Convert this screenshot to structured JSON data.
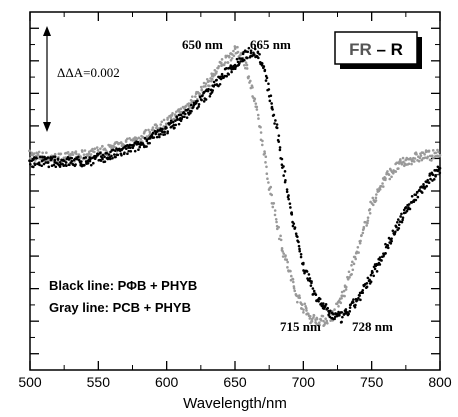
{
  "chart_data": {
    "type": "scatter",
    "xlabel": "Wavelength/nm",
    "ylabel": "",
    "xlim": [
      500,
      800
    ],
    "ylim": [
      -0.0065,
      0.0045
    ],
    "x_ticks": [
      "500",
      "550",
      "600",
      "650",
      "700",
      "750",
      "800"
    ],
    "scale_bar": {
      "label": "ΔΔA=0.002",
      "value": 0.002
    },
    "box_label": {
      "left": "FR",
      "dash": " – ",
      "right": "R"
    },
    "legend": [
      "Black line:  PΦB + PHYB",
      "Gray line:  PCB + PHYB"
    ],
    "peak_labels": [
      "650 nm",
      "665 nm",
      "715 nm",
      "728 nm"
    ],
    "series": [
      {
        "color": "#000000",
        "x": [
          500,
          520,
          540,
          560,
          580,
          600,
          615,
          630,
          645,
          655,
          662,
          667,
          672,
          680,
          690,
          700,
          710,
          720,
          728,
          735,
          745,
          755,
          765,
          775,
          785,
          795,
          800
        ],
        "y": [
          -0.0001,
          -0.0001,
          -0.0001,
          0.0001,
          0.0004,
          0.0009,
          0.0014,
          0.002,
          0.0027,
          0.0031,
          0.0033,
          0.0032,
          0.0026,
          0.001,
          -0.0014,
          -0.0033,
          -0.0043,
          -0.0048,
          -0.0049,
          -0.0046,
          -0.004,
          -0.0032,
          -0.0024,
          -0.0016,
          -0.001,
          -0.0005,
          -0.0003
        ]
      },
      {
        "color": "#999999",
        "x": [
          500,
          520,
          540,
          560,
          580,
          600,
          615,
          630,
          640,
          650,
          655,
          660,
          668,
          675,
          685,
          695,
          705,
          715,
          722,
          730,
          740,
          750,
          760,
          770,
          780,
          790,
          800
        ],
        "y": [
          0.0001,
          0.0,
          0.0001,
          0.0003,
          0.0006,
          0.0011,
          0.0016,
          0.0023,
          0.0029,
          0.0033,
          0.0032,
          0.0026,
          0.001,
          -0.0008,
          -0.0028,
          -0.0042,
          -0.0049,
          -0.005,
          -0.0048,
          -0.0041,
          -0.0028,
          -0.0014,
          -0.0006,
          -0.0002,
          0.0,
          0.0001,
          0.0001
        ]
      }
    ]
  }
}
